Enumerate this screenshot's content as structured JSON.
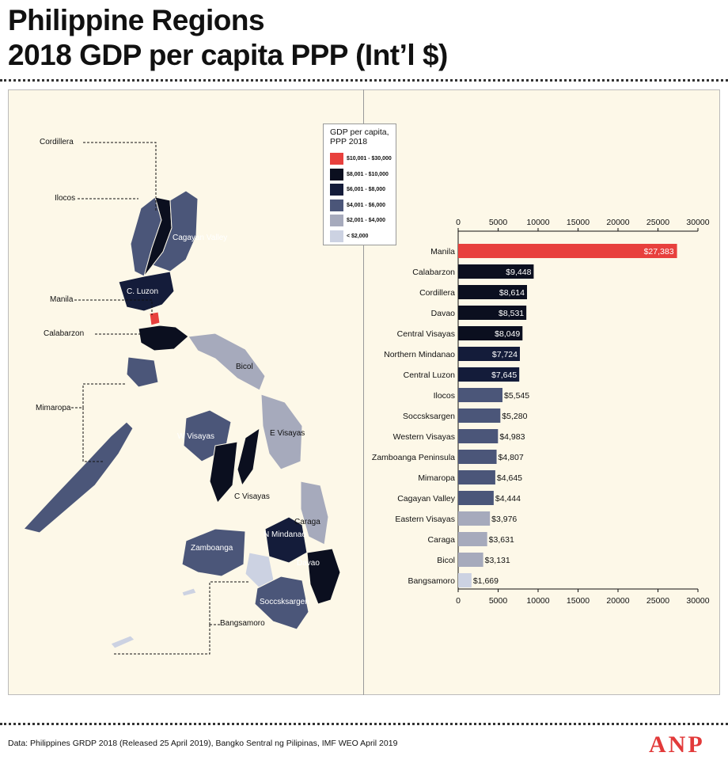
{
  "title": {
    "line1": "Philippine Regions",
    "line2": "2018 GDP per capita PPP (Int’l $)"
  },
  "legend": {
    "title": "GDP per capita, PPP 2018",
    "items": [
      {
        "label": "$10,001 - $30,000",
        "color": "#e8403d"
      },
      {
        "label": "$8,001 - $10,000",
        "color": "#0b0f1f"
      },
      {
        "label": "$6,001 - $8,000",
        "color": "#141c3a"
      },
      {
        "label": "$4,001 - $6,000",
        "color": "#4b5679"
      },
      {
        "label": "$2,001 - $4,000",
        "color": "#a6aabc"
      },
      {
        "label": "< $2,000",
        "color": "#ccd2e2"
      }
    ]
  },
  "map": {
    "labels": {
      "cordillera": "Cordillera",
      "ilocos": "Ilocos",
      "cagayan_valley": "Cagayan  Valley",
      "c_luzon": "C. Luzon",
      "manila": "Manila",
      "calabarzon": "Calabarzon",
      "bicol": "Bicol",
      "mimaropa": "Mimaropa",
      "w_visayas": "W Visayas",
      "e_visayas": "E Visayas",
      "c_visayas": "C Visayas",
      "caraga": "Caraga",
      "n_mindanao": "N Mindanao",
      "zamboanga": "Zamboanga",
      "davao": "Davao",
      "soccsksargen": "Soccsksargen",
      "bangsamoro": "Bangsamoro"
    }
  },
  "chart_data": {
    "type": "bar",
    "orientation": "horizontal",
    "categories": [
      "Manila",
      "Calabarzon",
      "Cordillera",
      "Davao",
      "Central Visayas",
      "Northern Mindanao",
      "Central Luzon",
      "Ilocos",
      "Soccsksargen",
      "Western Visayas",
      "Zamboanga Peninsula",
      "Mimaropa",
      "Cagayan Valley",
      "Eastern Visayas",
      "Caraga",
      "Bicol",
      "Bangsamoro"
    ],
    "values": [
      27383,
      9448,
      8614,
      8531,
      8049,
      7724,
      7645,
      5545,
      5280,
      4983,
      4807,
      4645,
      4444,
      3976,
      3631,
      3131,
      1669
    ],
    "value_labels": [
      "$27,383",
      "$9,448",
      "$8,614",
      "$8,531",
      "$8,049",
      "$7,724",
      "$7,645",
      "$5,545",
      "$5,280",
      "$4,983",
      "$4,807",
      "$4,645",
      "$4,444",
      "$3,976",
      "$3,631",
      "$3,131",
      "$1,669"
    ],
    "bar_colors": [
      "#e8403d",
      "#0b0f1f",
      "#0b0f1f",
      "#0b0f1f",
      "#0b0f1f",
      "#141c3a",
      "#141c3a",
      "#4b5679",
      "#4b5679",
      "#4b5679",
      "#4b5679",
      "#4b5679",
      "#4b5679",
      "#a6aabc",
      "#a6aabc",
      "#a6aabc",
      "#ccd2e2"
    ],
    "xlim": [
      0,
      30000
    ],
    "xticks": [
      0,
      5000,
      10000,
      15000,
      20000,
      25000,
      30000
    ],
    "xtick_labels": [
      "0",
      "5000",
      "10000",
      "15000",
      "20000",
      "25000",
      "30000"
    ],
    "axes_top_and_bottom": true,
    "grid": false
  },
  "source": "Data: Philippines GRDP 2018 (Released 25 April 2019), Bangko Sentral ng Pilipinas, IMF WEO April 2019",
  "logo": "ANP"
}
